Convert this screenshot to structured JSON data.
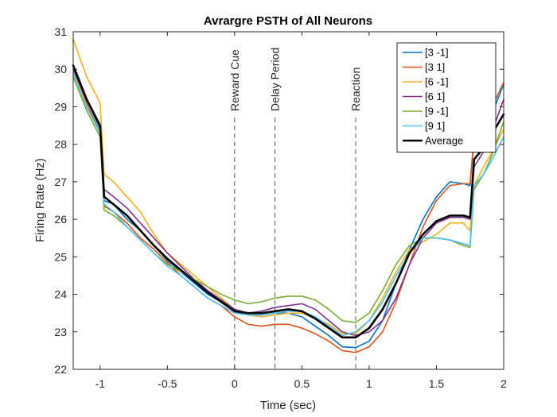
{
  "chart_data": {
    "type": "line",
    "title": "Avrargre PSTH of All Neurons",
    "xlabel": "Time (sec)",
    "ylabel": "Firing Rate (Hz)",
    "xlim": [
      -1.2,
      2
    ],
    "ylim": [
      22,
      31
    ],
    "xticks": [
      -1,
      -0.5,
      0,
      0.5,
      1,
      1.5,
      2
    ],
    "yticks": [
      22,
      23,
      24,
      25,
      26,
      27,
      28,
      29,
      30,
      31
    ],
    "grid": false,
    "legend_position": "top-right",
    "annotations": [
      {
        "label": "Reward Cue",
        "x": 0
      },
      {
        "label": "Delay Period",
        "x": 0.3
      },
      {
        "label": "Reaction",
        "x": 0.9
      }
    ],
    "x": [
      -1.2,
      -1.1,
      -1.0,
      -0.97,
      -0.9,
      -0.8,
      -0.7,
      -0.6,
      -0.5,
      -0.4,
      -0.3,
      -0.2,
      -0.1,
      0,
      0.1,
      0.2,
      0.3,
      0.4,
      0.5,
      0.6,
      0.7,
      0.8,
      0.9,
      1.0,
      1.1,
      1.2,
      1.3,
      1.4,
      1.5,
      1.6,
      1.7,
      1.75,
      1.78,
      1.85,
      1.9,
      2.0
    ],
    "series": [
      {
        "name": "[3 -1]",
        "color": "#0072BD",
        "width": 1.6,
        "values": [
          30.1,
          29.2,
          28.4,
          26.5,
          26.4,
          26.0,
          25.7,
          25.3,
          24.9,
          24.6,
          24.3,
          24.0,
          23.8,
          23.55,
          23.45,
          23.45,
          23.5,
          23.5,
          23.4,
          23.15,
          22.9,
          22.6,
          22.58,
          22.75,
          23.3,
          24.3,
          25.2,
          26.0,
          26.6,
          27.0,
          26.95,
          26.9,
          28.2,
          28.4,
          28.7,
          29.6
        ]
      },
      {
        "name": "[3 1]",
        "color": "#D95319",
        "width": 1.6,
        "values": [
          30.0,
          29.1,
          28.3,
          26.35,
          26.2,
          25.9,
          25.5,
          25.2,
          24.85,
          24.5,
          24.2,
          23.9,
          23.7,
          23.4,
          23.2,
          23.15,
          23.2,
          23.2,
          23.1,
          22.95,
          22.75,
          22.5,
          22.45,
          22.6,
          23.0,
          23.8,
          24.8,
          25.8,
          26.5,
          26.9,
          26.95,
          26.95,
          28.2,
          28.5,
          28.9,
          29.65
        ]
      },
      {
        "name": "[6 -1]",
        "color": "#EDB120",
        "width": 1.6,
        "values": [
          30.8,
          29.8,
          29.1,
          27.2,
          27.0,
          26.6,
          26.2,
          25.6,
          25.1,
          24.8,
          24.5,
          24.2,
          23.9,
          23.6,
          23.45,
          23.4,
          23.45,
          23.5,
          23.5,
          23.35,
          23.2,
          22.95,
          22.95,
          23.3,
          23.9,
          24.6,
          25.2,
          25.4,
          25.6,
          25.9,
          25.9,
          25.7,
          26.9,
          27.4,
          27.7,
          28.4
        ]
      },
      {
        "name": "[6 1]",
        "color": "#7E2F8E",
        "width": 1.6,
        "values": [
          30.0,
          29.2,
          28.5,
          26.8,
          26.6,
          26.3,
          25.9,
          25.5,
          25.1,
          24.75,
          24.4,
          24.1,
          23.85,
          23.6,
          23.5,
          23.55,
          23.65,
          23.7,
          23.75,
          23.6,
          23.3,
          23.0,
          22.9,
          23.0,
          23.3,
          23.9,
          24.8,
          25.5,
          25.9,
          26.05,
          26.05,
          26.0,
          27.4,
          27.8,
          28.2,
          29.2
        ]
      },
      {
        "name": "[9 -1]",
        "color": "#77AC30",
        "width": 1.6,
        "values": [
          29.8,
          28.9,
          28.2,
          26.25,
          26.1,
          25.8,
          25.45,
          25.1,
          24.8,
          24.6,
          24.4,
          24.2,
          24.0,
          23.85,
          23.75,
          23.8,
          23.9,
          23.95,
          23.95,
          23.85,
          23.6,
          23.3,
          23.25,
          23.5,
          24.1,
          24.8,
          25.3,
          25.5,
          25.5,
          25.45,
          25.3,
          25.25,
          26.8,
          27.2,
          27.6,
          28.6
        ]
      },
      {
        "name": "[9 1]",
        "color": "#4DBEEE",
        "width": 1.6,
        "values": [
          29.9,
          29.0,
          28.3,
          26.4,
          26.2,
          25.8,
          25.45,
          25.1,
          24.75,
          24.5,
          24.2,
          23.9,
          23.7,
          23.5,
          23.45,
          23.45,
          23.5,
          23.55,
          23.55,
          23.4,
          23.15,
          22.9,
          23.0,
          23.3,
          23.8,
          24.5,
          25.1,
          25.5,
          25.5,
          25.45,
          25.35,
          25.3,
          26.9,
          27.2,
          27.5,
          28.2
        ]
      },
      {
        "name": "Average",
        "color": "#000000",
        "width": 2.6,
        "values": [
          30.1,
          29.2,
          28.5,
          26.6,
          26.4,
          26.1,
          25.7,
          25.3,
          24.95,
          24.65,
          24.35,
          24.05,
          23.8,
          23.55,
          23.5,
          23.5,
          23.55,
          23.6,
          23.55,
          23.35,
          23.1,
          22.85,
          22.85,
          23.1,
          23.6,
          24.3,
          25.1,
          25.6,
          25.95,
          26.1,
          26.1,
          26.05,
          27.6,
          27.9,
          28.2,
          28.8
        ]
      }
    ]
  }
}
